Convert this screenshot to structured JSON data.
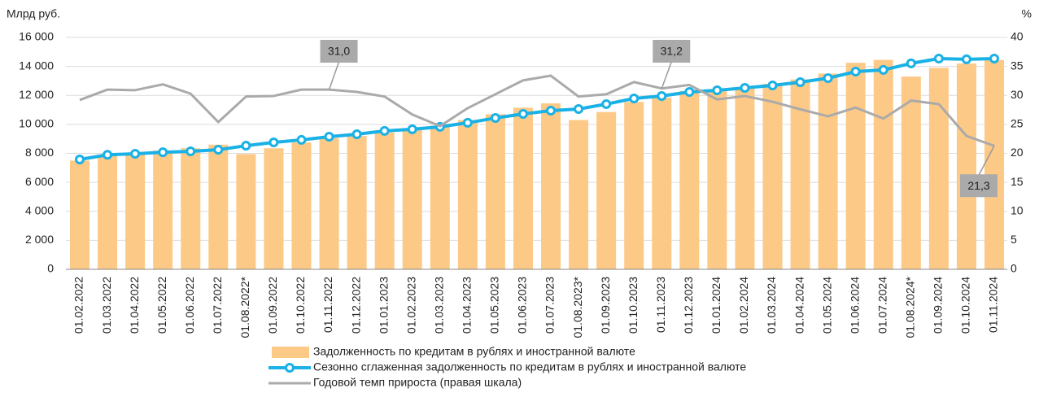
{
  "chart_data": {
    "type": "bar_line",
    "y_label": "Млрд руб.",
    "y2_label": "%",
    "categories": [
      "01.02.2022",
      "01.03.2022",
      "01.04.2022",
      "01.05.2022",
      "01.06.2022",
      "01.07.2022",
      "01.08.2022*",
      "01.09.2022",
      "01.10.2022",
      "01.11.2022",
      "01.12.2022",
      "01.01.2023",
      "01.02.2023",
      "01.03.2023",
      "01.04.2023",
      "01.05.2023",
      "01.06.2023",
      "01.07.2023",
      "01.08.2023*",
      "01.09.2023",
      "01.10.2023",
      "01.11.2023",
      "01.12.2023",
      "01.01.2024",
      "01.02.2024",
      "01.03.2024",
      "01.04.2024",
      "01.05.2024",
      "01.06.2024",
      "01.07.2024",
      "01.08.2024*",
      "01.09.2024",
      "01.10.2024",
      "01.11.2024"
    ],
    "series": [
      {
        "name": "Задолженность по кредитам в рублях и иностранной валюте",
        "kind": "bar",
        "color": "#fdc986",
        "values": [
          7500,
          7900,
          8000,
          8200,
          8350,
          8600,
          7950,
          8350,
          8750,
          9050,
          9200,
          9450,
          9600,
          9900,
          10300,
          10700,
          11150,
          11450,
          10300,
          10850,
          11550,
          11850,
          12300,
          12300,
          12500,
          12800,
          13100,
          13500,
          14250,
          14450,
          13300,
          13900,
          14200,
          14450
        ]
      },
      {
        "name": "Сезонно сглаженная задолженность по кредитам в рублях и иностранной валюте",
        "kind": "line-marker",
        "color": "#1ab1e6",
        "values": [
          7580,
          7900,
          7970,
          8080,
          8140,
          8250,
          8530,
          8760,
          8930,
          9150,
          9320,
          9550,
          9660,
          9830,
          10110,
          10440,
          10720,
          10950,
          11060,
          11400,
          11790,
          11960,
          12240,
          12350,
          12520,
          12690,
          12910,
          13190,
          13640,
          13760,
          14210,
          14540,
          14490,
          14540
        ]
      },
      {
        "name": "Годовой темп прироста (правая шкала)",
        "kind": "line",
        "axis": "y2",
        "color": "#aaaaaa",
        "values": [
          29.2,
          31.0,
          30.9,
          31.9,
          30.3,
          25.4,
          29.8,
          29.9,
          31.0,
          31.0,
          30.6,
          29.8,
          26.7,
          24.7,
          27.8,
          30.2,
          32.6,
          33.4,
          29.8,
          30.2,
          32.3,
          31.2,
          31.8,
          29.3,
          29.9,
          28.9,
          27.6,
          26.4,
          27.9,
          26.0,
          29.1,
          28.5,
          23.0,
          21.3
        ],
        "value_labels": [
          null,
          null,
          null,
          null,
          null,
          null,
          null,
          null,
          null,
          "31,0",
          null,
          null,
          null,
          null,
          null,
          null,
          null,
          null,
          null,
          null,
          null,
          "31,2",
          null,
          null,
          null,
          null,
          null,
          null,
          null,
          null,
          null,
          null,
          null,
          "21,3"
        ]
      }
    ],
    "ylim": [
      0,
      16000
    ],
    "yticks": [
      0,
      {
        "value": 2000,
        "label": "2 000"
      },
      {
        "value": 4000,
        "label": "4 000"
      },
      {
        "value": 6000,
        "label": "6 000"
      },
      {
        "value": 8000,
        "label": "8 000"
      },
      {
        "value": 10000,
        "label": "10 000"
      },
      {
        "value": 12000,
        "label": "12 000"
      },
      {
        "value": 14000,
        "label": "14 000"
      },
      {
        "value": 16000,
        "label": "16 000"
      }
    ],
    "y2lim": [
      0,
      40
    ],
    "y2ticks": [
      0,
      5,
      10,
      15,
      20,
      25,
      30,
      35,
      40
    ],
    "grid": true
  }
}
